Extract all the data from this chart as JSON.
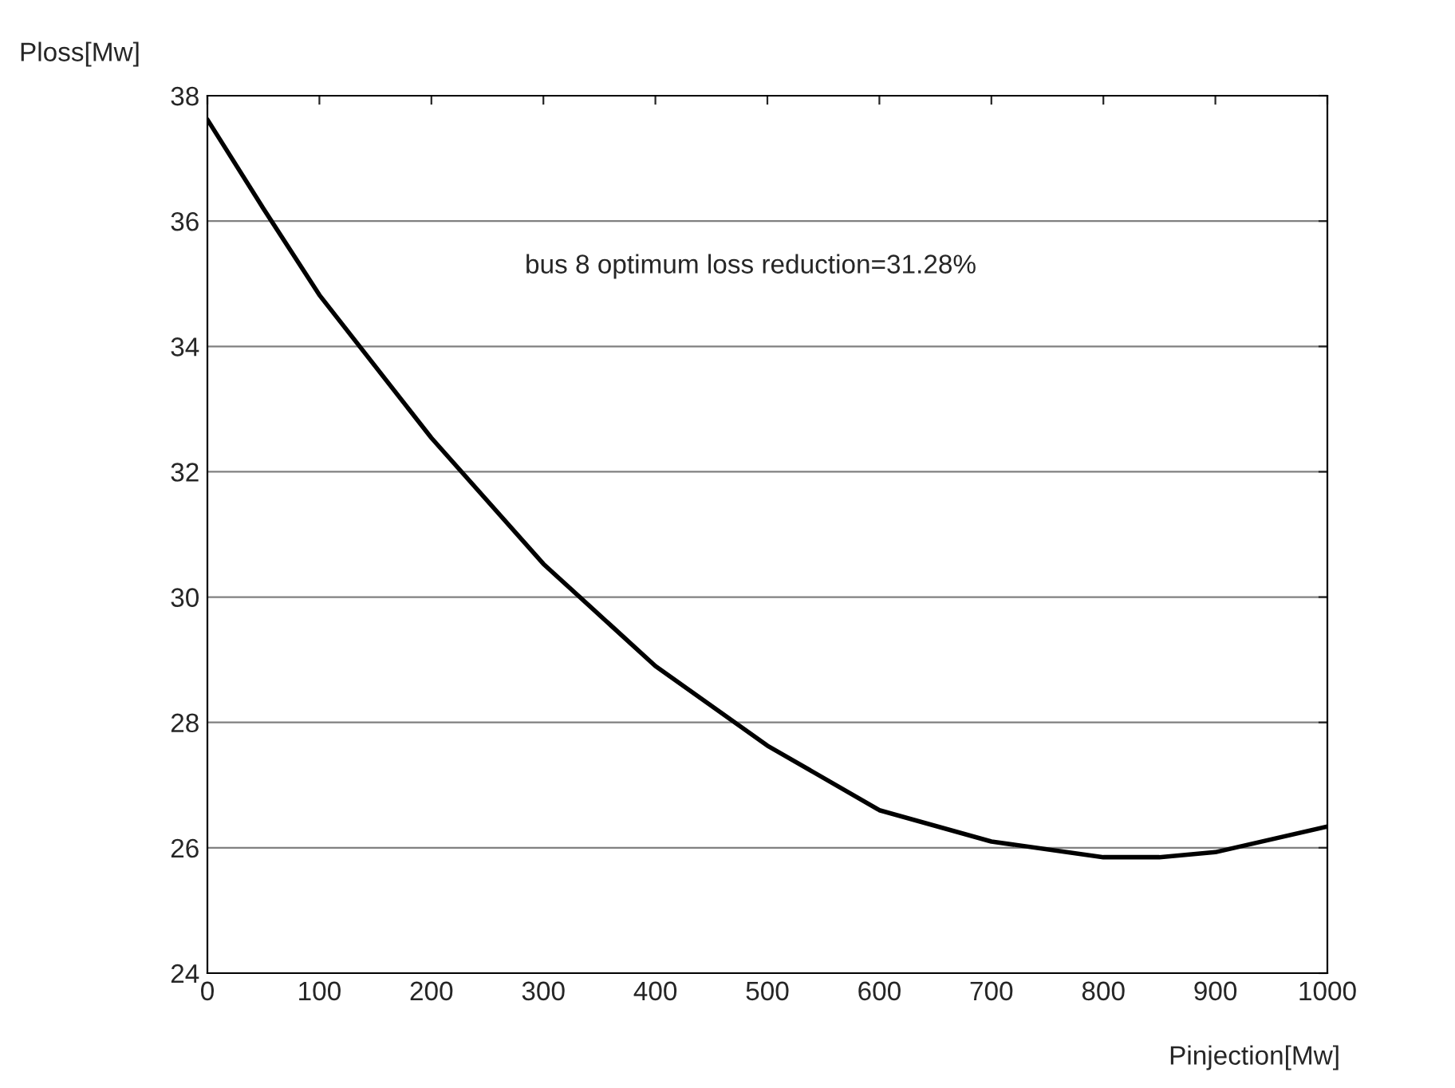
{
  "chart_data": {
    "type": "line",
    "xlabel": "Pinjection[Mw]",
    "ylabel": "Ploss[Mw]",
    "x": [
      0,
      50,
      100,
      200,
      300,
      400,
      500,
      600,
      700,
      800,
      850,
      900,
      1000
    ],
    "series": [
      {
        "color": "#000000",
        "values": [
          37.62,
          36.2,
          34.82,
          32.54,
          30.53,
          28.9,
          27.63,
          26.6,
          26.1,
          25.85,
          25.85,
          25.93,
          26.34
        ]
      }
    ],
    "xlim": [
      0,
      1000
    ],
    "xticks": [
      0,
      100,
      200,
      300,
      400,
      500,
      600,
      700,
      800,
      900,
      1000
    ],
    "ylim": [
      24,
      38
    ],
    "yticks": [
      24,
      26,
      28,
      30,
      32,
      34,
      36,
      38
    ],
    "grid": "y",
    "marker": "none",
    "line_style": "solid",
    "annotations": [
      "bus 8 optimum loss reduction=31.28%"
    ]
  }
}
